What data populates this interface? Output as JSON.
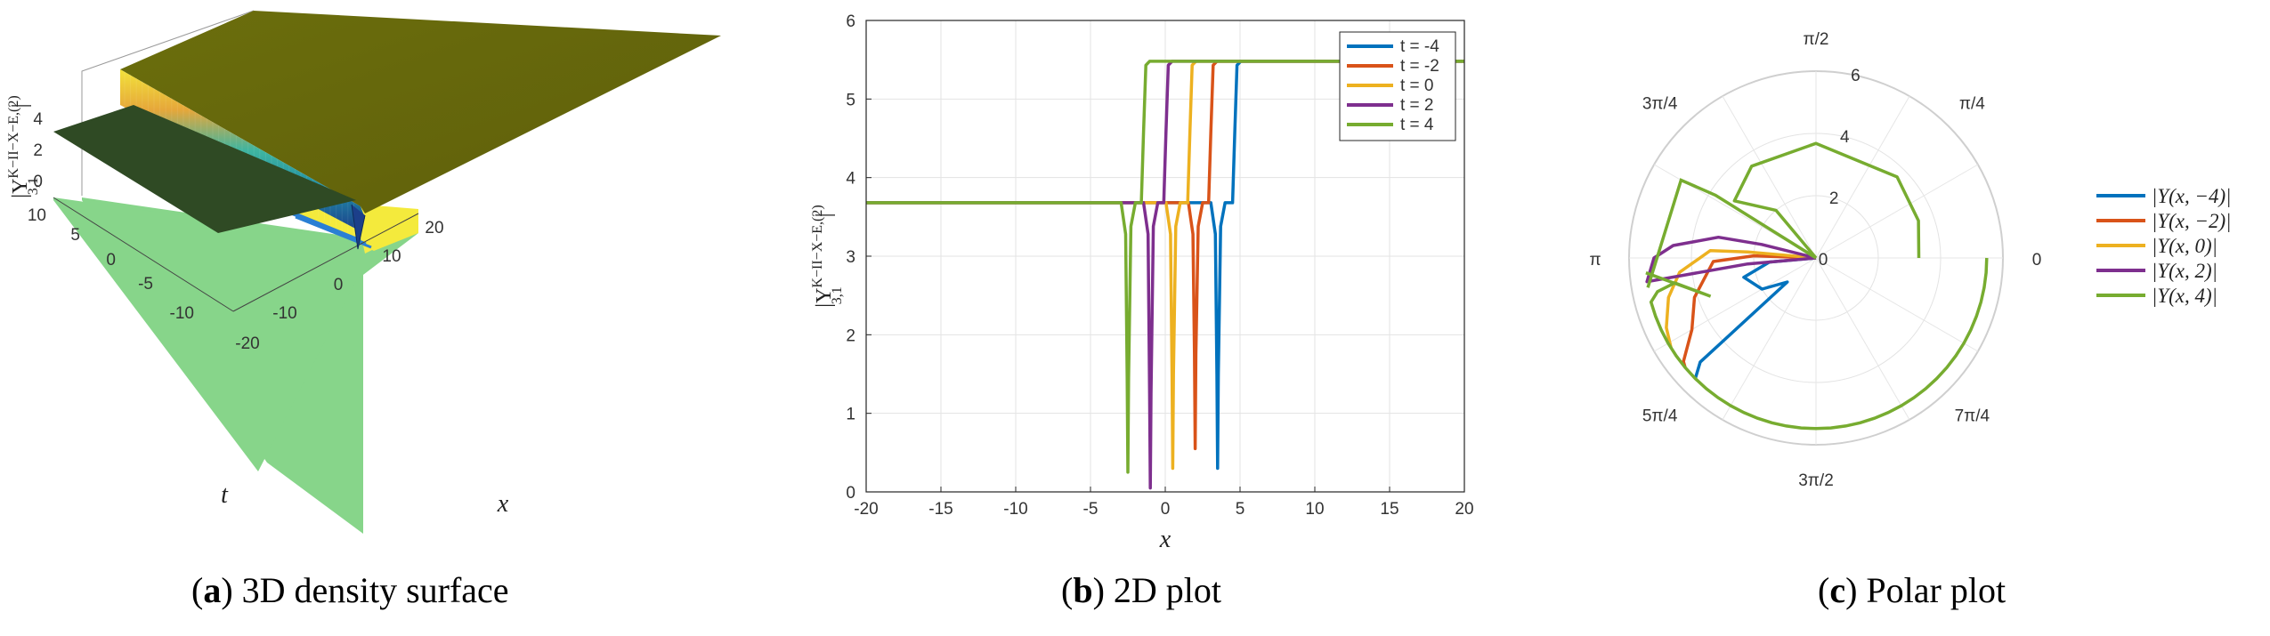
{
  "panels": [
    {
      "caption_letter": "a",
      "caption_text": "3D density surface",
      "chart_data": {
        "type": "surface",
        "xlabel": "x",
        "ylabel": "t",
        "zlabel": "|Υ_{3,1}^{K−II−X−E,(2)}|",
        "x_ticks": [
          "-20",
          "-10",
          "0",
          "10",
          "20"
        ],
        "t_ticks": [
          "-10",
          "-5",
          "0",
          "5",
          "10"
        ],
        "z_ticks": [
          "0",
          "2",
          "4"
        ],
        "xlim": [
          -20,
          20
        ],
        "ylim": [
          -10,
          10
        ],
        "zlim": [
          0,
          5.5
        ],
        "plateau_low": 3.68,
        "plateau_high": 5.48,
        "colormap": "parula"
      }
    },
    {
      "caption_letter": "b",
      "caption_text": "2D plot",
      "chart_data": {
        "type": "line",
        "xlabel": "x",
        "ylabel": "|Υ_{3,1}^{K−II−X−E,(2)}|",
        "xlim": [
          -20,
          20
        ],
        "ylim": [
          0,
          6
        ],
        "x_ticks": [
          "-20",
          "-15",
          "-10",
          "-5",
          "0",
          "5",
          "10",
          "15",
          "20"
        ],
        "y_ticks": [
          "0",
          "1",
          "2",
          "3",
          "4",
          "5",
          "6"
        ],
        "grid": true,
        "legend_position": "top-right",
        "baseline_left": 3.68,
        "baseline_right": 5.48,
        "series": [
          {
            "name": "t = -4",
            "color": "#0072BD",
            "dip_x": 3.5,
            "dip_min": 0.3,
            "rise_x": 4.8
          },
          {
            "name": "t = -2",
            "color": "#D95319",
            "dip_x": 2.0,
            "dip_min": 0.55,
            "rise_x": 3.2
          },
          {
            "name": "t = 0",
            "color": "#EDB120",
            "dip_x": 0.5,
            "dip_min": 0.3,
            "rise_x": 1.8
          },
          {
            "name": "t = 2",
            "color": "#7E2F8E",
            "dip_x": -1.0,
            "dip_min": 0.05,
            "rise_x": 0.2
          },
          {
            "name": "t = 4",
            "color": "#77AC30",
            "dip_x": -2.5,
            "dip_min": 0.25,
            "rise_x": -1.3
          }
        ]
      }
    },
    {
      "caption_letter": "c",
      "caption_text": "Polar plot",
      "chart_data": {
        "type": "polar",
        "rlim": [
          0,
          6
        ],
        "r_ticks": [
          "0",
          "2",
          "4",
          "6"
        ],
        "theta_ticks": [
          "0",
          "π/4",
          "π/2",
          "3π/4",
          "π",
          "5π/4",
          "3π/2",
          "7π/4"
        ],
        "legend_position": "right",
        "series": [
          {
            "name": "|Υ(x, −4)|",
            "color": "#0072BD"
          },
          {
            "name": "|Υ(x, −2)|",
            "color": "#D95319"
          },
          {
            "name": "|Υ(x, 0)|",
            "color": "#EDB120"
          },
          {
            "name": "|Υ(x, 2)|",
            "color": "#7E2F8E"
          },
          {
            "name": "|Υ(x, 4)|",
            "color": "#77AC30"
          }
        ]
      }
    }
  ]
}
